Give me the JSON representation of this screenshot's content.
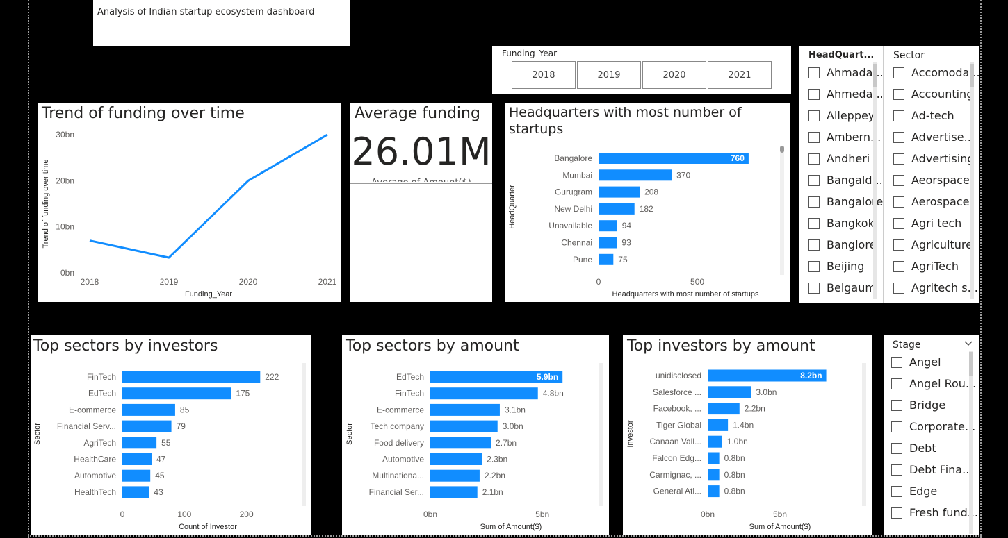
{
  "header": {
    "title": "Analysis of Indian startup ecosystem dashboard"
  },
  "colors": {
    "bar": "#118DFF",
    "line": "#118DFF"
  },
  "funding_year_slicer": {
    "label": "Funding_Year",
    "years": [
      "2018",
      "2019",
      "2020",
      "2021"
    ]
  },
  "headquarter_slicer": {
    "label": "HeadQuart...",
    "items": [
      "Ahmada...",
      "Ahmeda...",
      "Alleppey",
      "Ambern...",
      "Andheri",
      "Bangald...",
      "Bangalore",
      "Bangkok",
      "Banglore",
      "Beijing",
      "Belgaum"
    ]
  },
  "sector_slicer": {
    "label": "Sector",
    "items": [
      "Accomoda...",
      "Accounting",
      "Ad-tech",
      "Advertise...",
      "Advertising",
      "Aeorspace",
      "Aerospace",
      "Agri tech",
      "Agriculture",
      "AgriTech",
      "Agritech s..."
    ]
  },
  "stage_slicer": {
    "label": "Stage",
    "items": [
      "Angel",
      "Angel Rou...",
      "Bridge",
      "Corporate...",
      "Debt",
      "Debt Fina...",
      "Edge",
      "Fresh fund..."
    ]
  },
  "kpi": {
    "title": "Average funding",
    "value": "26.01M",
    "caption": "Average of Amount($)"
  },
  "chart_data": [
    {
      "id": "trend",
      "type": "line",
      "title": "Trend of funding over time",
      "xlabel": "Funding_Year",
      "ylabel": "Trend of funding over time",
      "x": [
        "2018",
        "2019",
        "2020",
        "2021"
      ],
      "y_tick_labels": [
        "0bn",
        "10bn",
        "20bn",
        "30bn"
      ],
      "y_ticks": [
        0,
        10,
        20,
        30
      ],
      "series": [
        {
          "values": [
            7,
            3.3,
            20,
            30
          ]
        }
      ],
      "ylim": [
        0,
        30
      ],
      "grid": false
    },
    {
      "id": "hq",
      "type": "bar",
      "orientation": "horizontal",
      "title": "Headquarters with most number of startups",
      "xlabel": "Headquarters with most number of startups",
      "ylabel": "HeadQuarter",
      "categories": [
        "Bangalore",
        "Mumbai",
        "Gurugram",
        "New Delhi",
        "Unavailable",
        "Chennai",
        "Pune"
      ],
      "values": [
        760,
        370,
        208,
        182,
        94,
        93,
        75
      ],
      "value_labels": [
        "760",
        "370",
        "208",
        "182",
        "94",
        "93",
        "75"
      ],
      "x_ticks": [
        0,
        500
      ],
      "x_tick_labels": [
        "0",
        "500"
      ],
      "xlim": [
        0,
        880
      ]
    },
    {
      "id": "sectors_inv",
      "type": "bar",
      "orientation": "horizontal",
      "title": "Top sectors by investors",
      "xlabel": "Count of Investor",
      "ylabel": "Sector",
      "categories": [
        "FinTech",
        "EdTech",
        "E-commerce",
        "Financial Serv...",
        "AgriTech",
        "HealthCare",
        "Automotive",
        "HealthTech"
      ],
      "values": [
        222,
        175,
        85,
        79,
        55,
        47,
        45,
        43
      ],
      "value_labels": [
        "222",
        "175",
        "85",
        "79",
        "55",
        "47",
        "45",
        "43"
      ],
      "x_ticks": [
        0,
        100,
        200
      ],
      "x_tick_labels": [
        "0",
        "100",
        "200"
      ],
      "xlim": [
        0,
        253
      ]
    },
    {
      "id": "sectors_amt",
      "type": "bar",
      "orientation": "horizontal",
      "title": "Top sectors by amount",
      "xlabel": "Sum of Amount($)",
      "ylabel": "Sector",
      "categories": [
        "EdTech",
        "FinTech",
        "E-commerce",
        "Tech company",
        "Food delivery",
        "Automotive",
        "Multinationa...",
        "Financial Ser..."
      ],
      "values": [
        5.9,
        4.8,
        3.1,
        3.0,
        2.7,
        2.3,
        2.2,
        2.1
      ],
      "value_labels": [
        "5.9bn",
        "4.8bn",
        "3.1bn",
        "3.0bn",
        "2.7bn",
        "2.3bn",
        "2.2bn",
        "2.1bn"
      ],
      "x_ticks": [
        0,
        5
      ],
      "x_tick_labels": [
        "0bn",
        "5bn"
      ],
      "xlim": [
        0,
        6.7
      ]
    },
    {
      "id": "investors_amt",
      "type": "bar",
      "orientation": "horizontal",
      "title": "Top investors by amount",
      "xlabel": "Sum of Amount($)",
      "ylabel": "Investor",
      "categories": [
        "unidisclosed",
        "Salesforce ...",
        "Facebook, ...",
        "Tiger Global",
        "Canaan Vall...",
        "Falcon Edg...",
        "Carmignac, ...",
        "General Atl..."
      ],
      "values": [
        8.2,
        3.0,
        2.2,
        1.4,
        1.0,
        0.8,
        0.8,
        0.8
      ],
      "value_labels": [
        "8.2bn",
        "3.0bn",
        "2.2bn",
        "1.4bn",
        "1.0bn",
        "0.8bn",
        "0.8bn",
        "0.8bn"
      ],
      "x_ticks": [
        0,
        5
      ],
      "x_tick_labels": [
        "0bn",
        "5bn"
      ],
      "xlim": [
        0,
        10
      ]
    }
  ]
}
